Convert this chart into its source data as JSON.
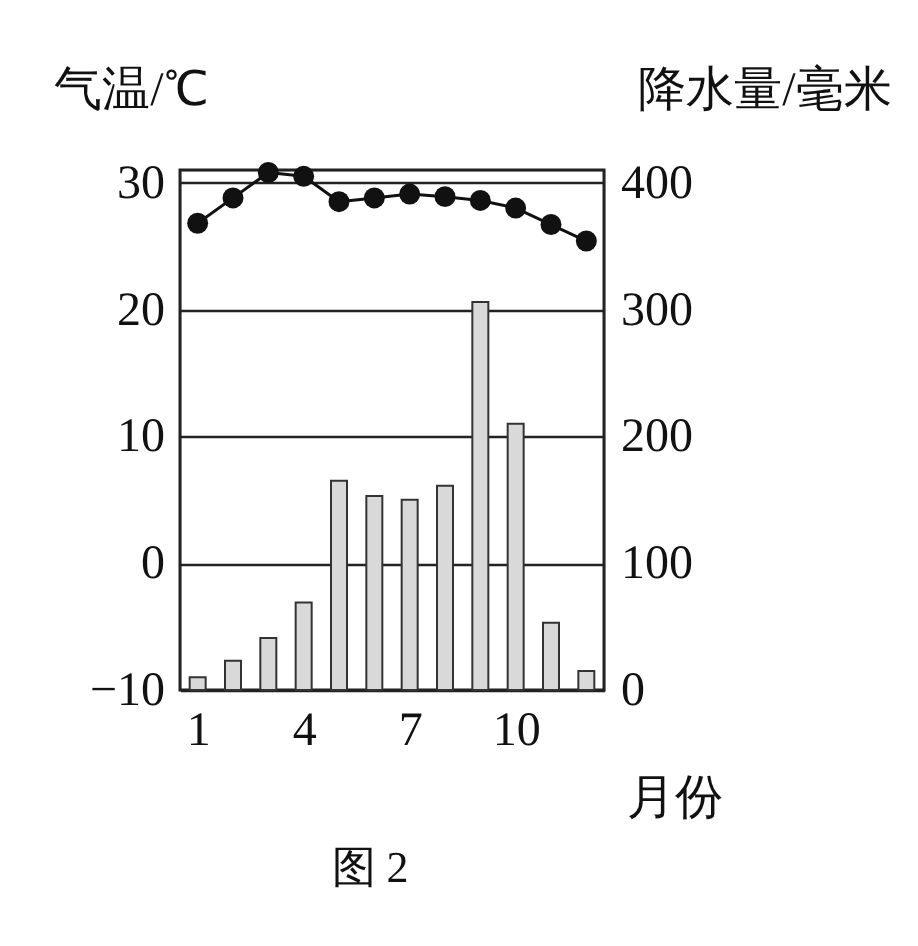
{
  "chart_data": {
    "type": "bar",
    "x": [
      1,
      2,
      3,
      4,
      5,
      6,
      7,
      8,
      9,
      10,
      11,
      12
    ],
    "xlim": [
      0.5,
      12.5
    ],
    "xticks": [
      1,
      4,
      7,
      10
    ],
    "xlabel": "月份",
    "ylabel": "气温/℃",
    "y2label": "降水量/毫米",
    "ylim": [
      -10,
      31
    ],
    "yticks": [
      -10,
      0,
      10,
      20,
      30
    ],
    "y2lim": [
      0,
      410
    ],
    "y2ticks": [
      0,
      100,
      200,
      300,
      400
    ],
    "grid": "y",
    "series": [
      {
        "axis": "y2",
        "color": "#d9d9d9",
        "values": [
          10,
          23,
          41,
          69,
          165,
          153,
          150,
          161,
          306,
          210,
          53,
          15
        ]
      },
      {
        "type": "line",
        "axis": "y",
        "color": "#111111",
        "marker": "circle",
        "line_style": "solid",
        "values": [
          26.8,
          28.8,
          30.8,
          30.5,
          28.5,
          28.8,
          29.1,
          28.9,
          28.6,
          28.0,
          26.7,
          25.4
        ]
      }
    ],
    "annotations": [
      "图 2"
    ]
  }
}
